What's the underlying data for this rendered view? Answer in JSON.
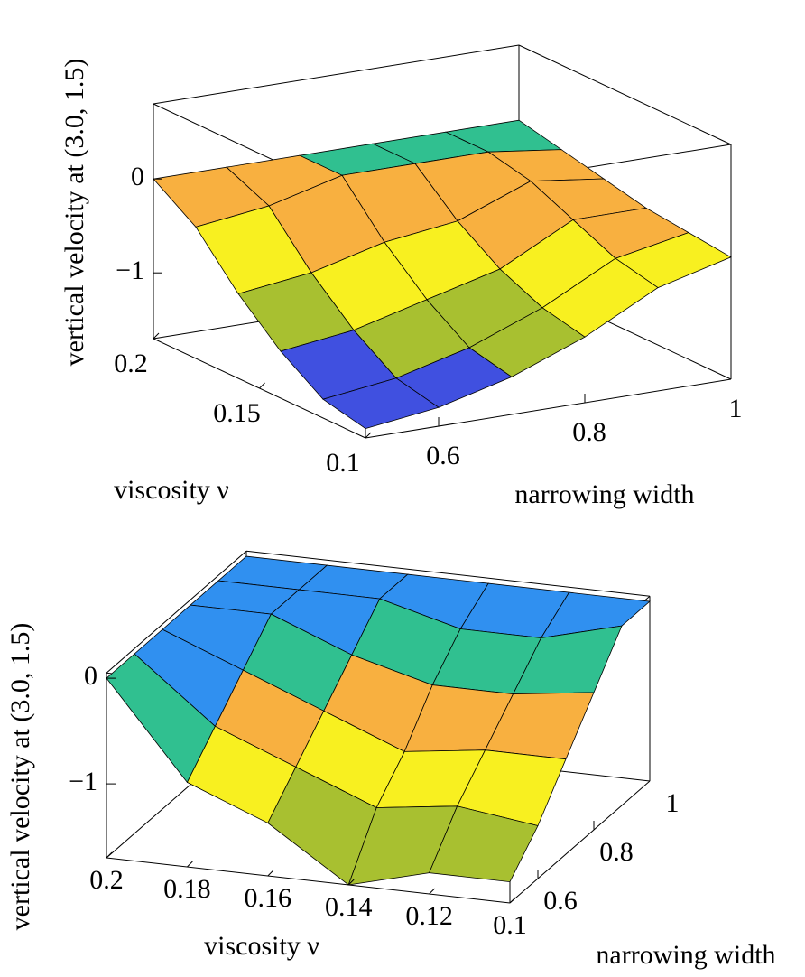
{
  "chart_data": [
    {
      "type": "surface",
      "xlabel": "narrowing width",
      "ylabel": "viscosity ν",
      "zlabel": "vertical velocity at (3.0, 1.5)",
      "xlim": [
        0.5,
        1
      ],
      "ylim": [
        0.1,
        0.2
      ],
      "zlim": [
        -1.7,
        0.8
      ],
      "xticks": [
        0.6,
        0.8,
        1
      ],
      "yticks": [
        0.1,
        0.15,
        0.2
      ],
      "zticks": [
        0,
        {
          "value": -1,
          "label": "−1"
        }
      ],
      "x": [
        0.5,
        0.6,
        0.7,
        0.8,
        0.9,
        1.0
      ],
      "y": [
        0.1,
        0.12,
        0.14,
        0.16,
        0.18,
        0.2
      ],
      "z": [
        [
          -1.6,
          -1.5,
          -1.3,
          -1.0,
          -0.6,
          -0.4
        ],
        [
          -1.5,
          -1.4,
          -1.2,
          -0.9,
          -0.5,
          -0.35
        ],
        [
          -1.2,
          -1.1,
          -0.9,
          -0.7,
          -0.3,
          -0.3
        ],
        [
          -0.8,
          -0.7,
          -0.5,
          -0.4,
          -0.1,
          -0.2
        ],
        [
          -0.3,
          -0.2,
          0,
          0,
          0,
          -0.1
        ],
        [
          0,
          0,
          0,
          0,
          0,
          0
        ]
      ],
      "colormap": [
        "#4050e0",
        "#a8c030",
        "#f8f020",
        "#f8b040",
        "#30c090",
        "#3090f0"
      ]
    },
    {
      "type": "surface",
      "xlabel": "narrowing width",
      "ylabel": "viscosity ν",
      "zlabel": "vertical velocity at (3.0, 1.5)",
      "xlim": [
        0.5,
        1
      ],
      "ylim": [
        0.1,
        0.2
      ],
      "zlim": [
        -1.7,
        0.05
      ],
      "xticks": [
        0.6,
        0.8,
        1
      ],
      "yticks": [
        0.1,
        0.12,
        0.14,
        0.16,
        0.18,
        0.2
      ],
      "zticks": [
        0,
        {
          "value": -1,
          "label": "−1"
        }
      ],
      "x": [
        0.5,
        0.6,
        0.7,
        0.8,
        0.9,
        1.0
      ],
      "y": [
        0.1,
        0.12,
        0.14,
        0.16,
        0.18,
        0.2
      ],
      "z": [
        [
          -1.5,
          -1.2,
          -0.8,
          -0.4,
          0,
          0
        ],
        [
          -1.5,
          -1.1,
          -0.8,
          -0.5,
          -0.2,
          0
        ],
        [
          -1.7,
          -1.2,
          -0.9,
          -0.5,
          -0.2,
          0
        ],
        [
          -1.2,
          -0.9,
          -0.6,
          -0.3,
          0,
          0
        ],
        [
          -0.9,
          -0.6,
          -0.3,
          0,
          0,
          0
        ],
        [
          0,
          0,
          0,
          0,
          0,
          0
        ]
      ],
      "colormap": [
        "#4050e0",
        "#a8c030",
        "#f8f020",
        "#f8b040",
        "#30c090",
        "#3090f0"
      ]
    }
  ]
}
